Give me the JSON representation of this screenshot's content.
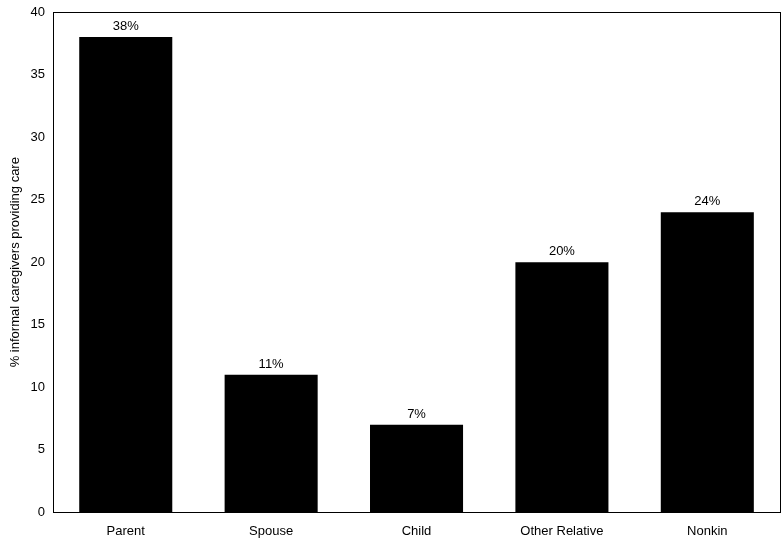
{
  "chart_data": {
    "type": "bar",
    "y_label": "% informal caregivers providing care",
    "categories": [
      "Parent",
      "Spouse",
      "Child",
      "Other Relative",
      "Nonkin"
    ],
    "values": [
      38,
      11,
      7,
      20,
      24
    ],
    "value_labels": [
      "38%",
      "11%",
      "7%",
      "20%",
      "24%"
    ],
    "color": "#000000",
    "ylim": [
      0,
      40
    ],
    "yticks": [
      0,
      5,
      10,
      15,
      20,
      25,
      30,
      35,
      40
    ],
    "grid": false,
    "data_labels": true,
    "legend": false
  }
}
